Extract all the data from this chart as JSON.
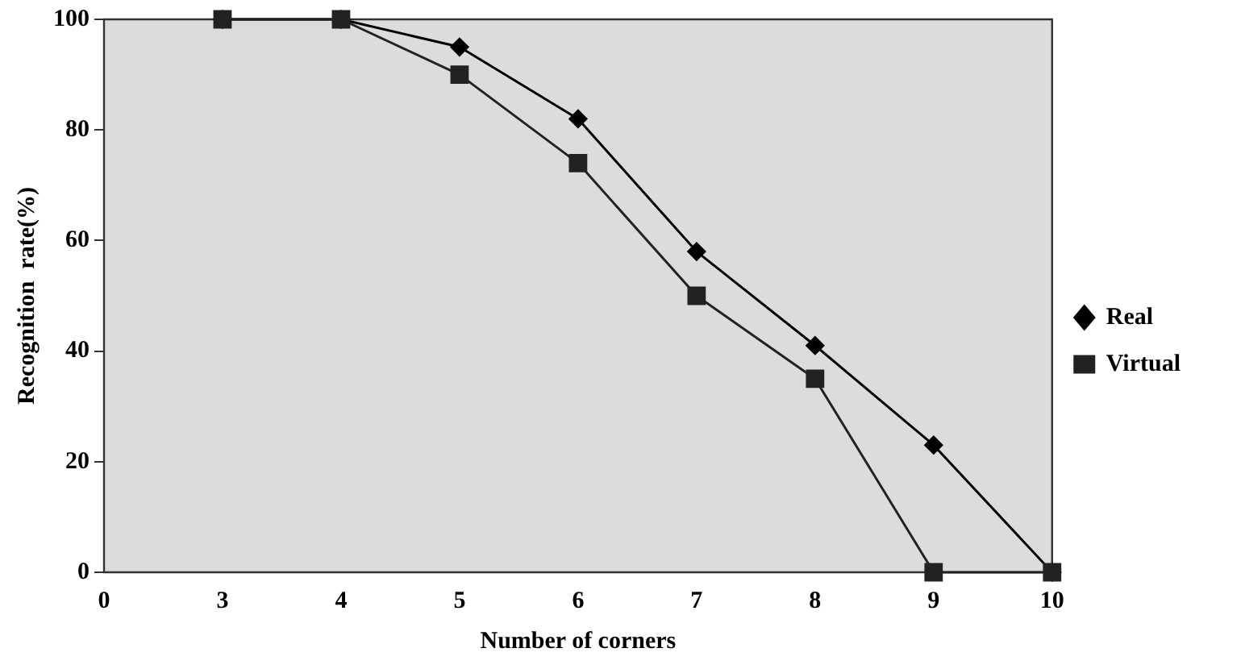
{
  "chart_data": {
    "type": "line",
    "xlabel": "Number of corners",
    "ylabel": "Recognition  rate(%)",
    "categories": [
      "0",
      "3",
      "4",
      "5",
      "6",
      "7",
      "8",
      "9",
      "10"
    ],
    "ylim": [
      0,
      100
    ],
    "yticks": [
      0,
      20,
      40,
      60,
      80,
      100
    ],
    "grid": false,
    "legend": "right",
    "line_style": "solid",
    "series": [
      {
        "name": "Real",
        "color": "#000000",
        "marker": "diamond",
        "values": [
          null,
          100,
          100,
          95,
          82,
          58,
          41,
          23,
          0
        ]
      },
      {
        "name": "Virtual",
        "color": "#222222",
        "marker": "square",
        "values": [
          null,
          100,
          100,
          90,
          74,
          50,
          35,
          0,
          0
        ]
      }
    ]
  }
}
